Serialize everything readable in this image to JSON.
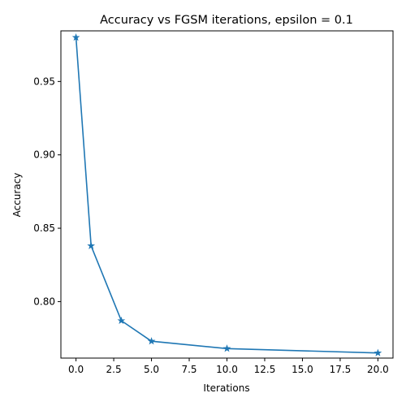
{
  "chart_data": {
    "type": "line",
    "title": "Accuracy vs FGSM iterations, epsilon = 0.1",
    "xlabel": "Iterations",
    "ylabel": "Accuracy",
    "xlim": [
      -1,
      21
    ],
    "ylim": [
      0.7615,
      0.9845
    ],
    "xticks": [
      0.0,
      2.5,
      5.0,
      7.5,
      10.0,
      12.5,
      15.0,
      17.5,
      20.0
    ],
    "xtick_labels": [
      "0.0",
      "2.5",
      "5.0",
      "7.5",
      "10.0",
      "12.5",
      "15.0",
      "17.5",
      "20.0"
    ],
    "yticks": [
      0.8,
      0.85,
      0.9,
      0.95
    ],
    "ytick_labels": [
      "0.80",
      "0.85",
      "0.90",
      "0.95"
    ],
    "grid": false,
    "marker": "star",
    "series": [
      {
        "color": "#1f77b4",
        "x": [
          0,
          1,
          3,
          5,
          10,
          20
        ],
        "y": [
          0.98,
          0.838,
          0.787,
          0.773,
          0.768,
          0.765
        ]
      }
    ]
  }
}
